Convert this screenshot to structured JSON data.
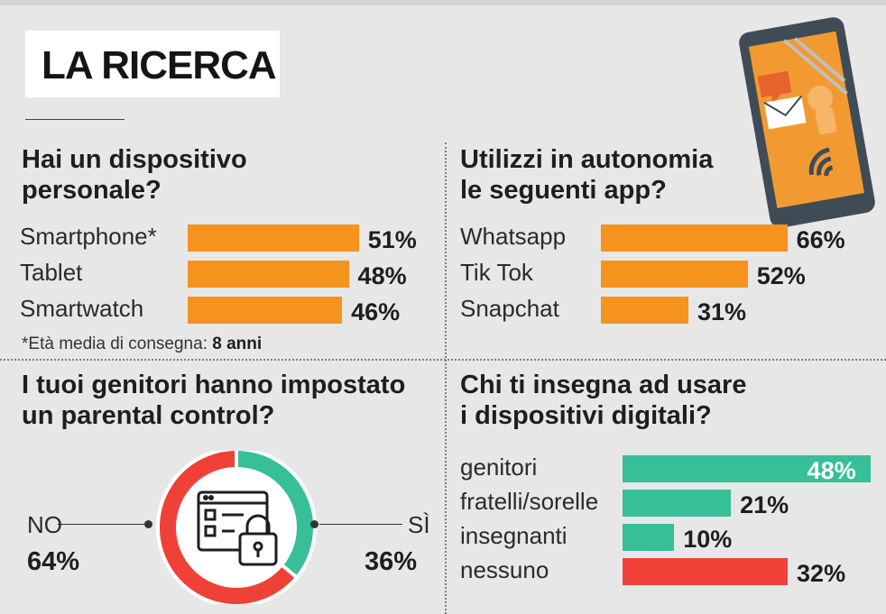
{
  "title": "LA RICERCA",
  "colors": {
    "orange": "#f6921e",
    "teal": "#37bf98",
    "red": "#ef4138",
    "background": "#e7e7e7"
  },
  "icons": [
    "smartphone-illustration-icon",
    "checklist-lock-icon"
  ],
  "sections": {
    "device": {
      "question_line1": "Hai un dispositivo",
      "question_line2": "personale?",
      "note_text": "*Età media di consegna:",
      "note_value": "8 anni"
    },
    "apps": {
      "question_line1": "Utilizzi in autonomia",
      "question_line2": "le seguenti app?"
    },
    "parental": {
      "question_line1": "I tuoi genitori hanno impostato",
      "question_line2": "un parental control?"
    },
    "teachers": {
      "question_line1": "Chi ti insegna ad usare",
      "question_line2": "i dispositivi digitali?"
    }
  },
  "chart_data": [
    {
      "type": "bar",
      "orientation": "horizontal",
      "title": "Hai un dispositivo personale?",
      "categories": [
        "Smartphone*",
        "Tablet",
        "Smartwatch"
      ],
      "values": [
        51,
        48,
        46
      ],
      "labels": [
        "51%",
        "48%",
        "46%"
      ],
      "unit": "%",
      "color": "#f6921e"
    },
    {
      "type": "bar",
      "orientation": "horizontal",
      "title": "Utilizzi in autonomia le seguenti app?",
      "categories": [
        "Whatsapp",
        "Tik Tok",
        "Snapchat"
      ],
      "values": [
        66,
        52,
        31
      ],
      "labels": [
        "66%",
        "52%",
        "31%"
      ],
      "unit": "%",
      "color": "#f6921e"
    },
    {
      "type": "pie",
      "style": "donut",
      "title": "I tuoi genitori hanno impostato un parental control?",
      "categories": [
        "NO",
        "SÌ"
      ],
      "values": [
        64,
        36
      ],
      "labels": [
        "64%",
        "36%"
      ],
      "colors": [
        "#ef4138",
        "#37bf98"
      ]
    },
    {
      "type": "bar",
      "orientation": "horizontal",
      "title": "Chi ti insegna ad usare i dispositivi digitali?",
      "categories": [
        "genitori",
        "fratelli/sorelle",
        "insegnanti",
        "nessuno"
      ],
      "values": [
        48,
        21,
        10,
        32
      ],
      "labels": [
        "48%",
        "21%",
        "10%",
        "32%"
      ],
      "unit": "%",
      "colors": [
        "#37bf98",
        "#37bf98",
        "#37bf98",
        "#ef4138"
      ]
    }
  ]
}
